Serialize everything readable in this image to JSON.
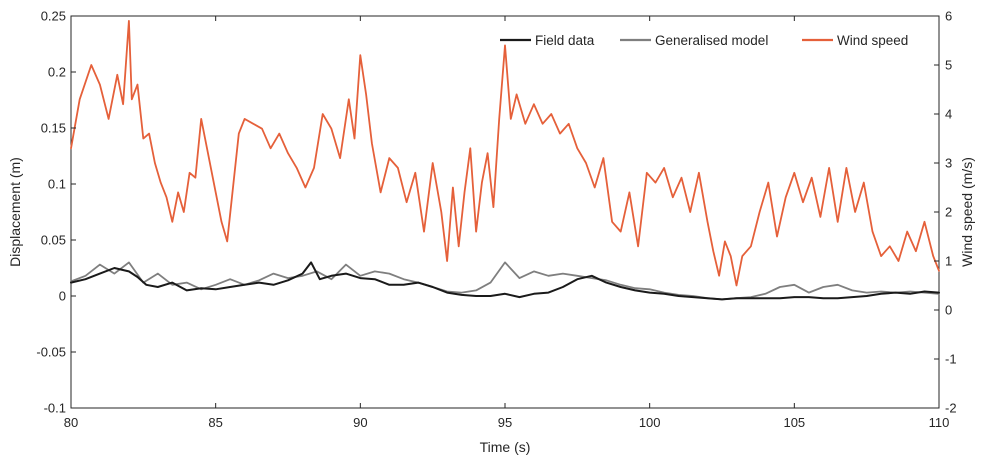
{
  "chart_data": {
    "type": "line",
    "xlabel": "Time (s)",
    "ylabel_left": "Displacement (m)",
    "ylabel_right": "Wind speed (m/s)",
    "xlim": [
      80,
      110
    ],
    "ylim_left": [
      -0.1,
      0.25
    ],
    "ylim_right": [
      -2,
      6
    ],
    "x_ticks": [
      "80",
      "85",
      "90",
      "95",
      "100",
      "105",
      "110"
    ],
    "y_left_ticks": [
      "-0.1",
      "-0.05",
      "0",
      "0.05",
      "0.1",
      "0.15",
      "0.2",
      "0.25"
    ],
    "y_right_ticks": [
      "-2",
      "-1",
      "0",
      "1",
      "2",
      "3",
      "4",
      "5",
      "6"
    ],
    "grid": false,
    "legend_position": "top-right",
    "legend": [
      "Field data",
      "Generalised model",
      "Wind speed"
    ],
    "colors": {
      "field": "#1a1a1a",
      "model": "#7f7f7f",
      "wind": "#e5603a",
      "axis": "#262626"
    },
    "series": [
      {
        "name": "Field data",
        "axis": "left",
        "x": [
          80,
          80.5,
          81,
          81.5,
          82,
          82.3,
          82.6,
          83,
          83.5,
          84,
          84.5,
          85,
          85.5,
          86,
          86.5,
          87,
          87.5,
          88,
          88.3,
          88.6,
          89,
          89.5,
          90,
          90.5,
          91,
          91.5,
          92,
          92.5,
          93,
          93.5,
          94,
          94.5,
          95,
          95.5,
          96,
          96.5,
          97,
          97.5,
          98,
          98.5,
          99,
          99.5,
          100,
          100.5,
          101,
          101.5,
          102,
          102.5,
          103,
          103.5,
          104,
          104.5,
          105,
          105.5,
          106,
          106.5,
          107,
          107.5,
          108,
          108.5,
          109,
          109.5,
          110
        ],
        "values": [
          0.012,
          0.015,
          0.02,
          0.025,
          0.022,
          0.017,
          0.01,
          0.008,
          0.012,
          0.005,
          0.007,
          0.006,
          0.008,
          0.01,
          0.012,
          0.01,
          0.014,
          0.02,
          0.03,
          0.015,
          0.018,
          0.02,
          0.016,
          0.015,
          0.01,
          0.01,
          0.012,
          0.008,
          0.003,
          0.001,
          0.0,
          0.0,
          0.002,
          -0.001,
          0.002,
          0.003,
          0.008,
          0.015,
          0.018,
          0.012,
          0.008,
          0.005,
          0.003,
          0.002,
          0.0,
          -0.001,
          -0.002,
          -0.003,
          -0.002,
          -0.002,
          -0.002,
          -0.002,
          -0.001,
          -0.001,
          -0.002,
          -0.002,
          -0.001,
          0.0,
          0.002,
          0.003,
          0.002,
          0.004,
          0.003
        ]
      },
      {
        "name": "Generalised model",
        "axis": "left",
        "x": [
          80,
          80.5,
          81,
          81.5,
          82,
          82.5,
          83,
          83.5,
          84,
          84.5,
          85,
          85.5,
          86,
          86.5,
          87,
          87.5,
          88,
          88.5,
          89,
          89.5,
          90,
          90.5,
          91,
          91.5,
          92,
          92.5,
          93,
          93.5,
          94,
          94.5,
          95,
          95.5,
          96,
          96.5,
          97,
          97.5,
          98,
          98.5,
          99,
          99.5,
          100,
          100.5,
          101,
          101.5,
          102,
          102.5,
          103,
          103.5,
          104,
          104.5,
          105,
          105.5,
          106,
          106.5,
          107,
          107.5,
          108,
          108.5,
          109,
          109.5,
          110
        ],
        "values": [
          0.013,
          0.018,
          0.028,
          0.02,
          0.03,
          0.012,
          0.02,
          0.01,
          0.012,
          0.006,
          0.01,
          0.015,
          0.01,
          0.014,
          0.02,
          0.016,
          0.018,
          0.022,
          0.015,
          0.028,
          0.018,
          0.022,
          0.02,
          0.015,
          0.012,
          0.008,
          0.004,
          0.003,
          0.005,
          0.012,
          0.03,
          0.016,
          0.022,
          0.018,
          0.02,
          0.018,
          0.016,
          0.014,
          0.01,
          0.007,
          0.006,
          0.003,
          0.001,
          0.0,
          -0.002,
          -0.003,
          -0.002,
          -0.001,
          0.002,
          0.008,
          0.01,
          0.003,
          0.008,
          0.01,
          0.005,
          0.003,
          0.004,
          0.003,
          0.004,
          0.003,
          0.002
        ]
      },
      {
        "name": "Wind speed",
        "axis": "right",
        "x": [
          80,
          80.3,
          80.7,
          81,
          81.3,
          81.6,
          81.8,
          82,
          82.1,
          82.3,
          82.5,
          82.7,
          82.9,
          83.1,
          83.3,
          83.5,
          83.7,
          83.9,
          84.1,
          84.3,
          84.5,
          84.7,
          85,
          85.2,
          85.4,
          85.6,
          85.8,
          86,
          86.3,
          86.6,
          86.9,
          87.2,
          87.5,
          87.8,
          88.1,
          88.4,
          88.7,
          89,
          89.3,
          89.6,
          89.8,
          90,
          90.2,
          90.4,
          90.7,
          91,
          91.3,
          91.6,
          91.9,
          92.2,
          92.5,
          92.8,
          93,
          93.2,
          93.4,
          93.6,
          93.8,
          94,
          94.2,
          94.4,
          94.6,
          94.8,
          95,
          95.2,
          95.4,
          95.7,
          96,
          96.3,
          96.6,
          96.9,
          97.2,
          97.5,
          97.8,
          98.1,
          98.4,
          98.7,
          99,
          99.3,
          99.6,
          99.9,
          100.2,
          100.5,
          100.8,
          101.1,
          101.4,
          101.7,
          102,
          102.2,
          102.4,
          102.6,
          102.8,
          103,
          103.2,
          103.5,
          103.8,
          104.1,
          104.4,
          104.7,
          105,
          105.3,
          105.6,
          105.9,
          106.2,
          106.5,
          106.8,
          107.1,
          107.4,
          107.7,
          108,
          108.3,
          108.6,
          108.9,
          109.2,
          109.5,
          109.8,
          110
        ],
        "values": [
          3.3,
          4.3,
          5.0,
          4.6,
          3.9,
          4.8,
          4.2,
          5.9,
          4.3,
          4.6,
          3.5,
          3.6,
          3.0,
          2.6,
          2.3,
          1.8,
          2.4,
          2.0,
          2.8,
          2.7,
          3.9,
          3.3,
          2.4,
          1.8,
          1.4,
          2.5,
          3.6,
          3.9,
          3.8,
          3.7,
          3.3,
          3.6,
          3.2,
          2.9,
          2.5,
          2.9,
          4.0,
          3.7,
          3.1,
          4.3,
          3.5,
          5.2,
          4.4,
          3.4,
          2.4,
          3.1,
          2.9,
          2.2,
          2.8,
          1.6,
          3.0,
          2.0,
          1.0,
          2.5,
          1.3,
          2.4,
          3.3,
          1.6,
          2.6,
          3.2,
          2.1,
          3.9,
          5.4,
          3.9,
          4.4,
          3.8,
          4.2,
          3.8,
          4.0,
          3.6,
          3.8,
          3.3,
          3.0,
          2.5,
          3.1,
          1.8,
          1.6,
          2.4,
          1.3,
          2.8,
          2.6,
          2.9,
          2.3,
          2.7,
          2.0,
          2.8,
          1.8,
          1.2,
          0.7,
          1.4,
          1.1,
          0.5,
          1.1,
          1.3,
          2.0,
          2.6,
          1.5,
          2.3,
          2.8,
          2.2,
          2.7,
          1.9,
          2.9,
          1.8,
          2.9,
          2.0,
          2.6,
          1.6,
          1.1,
          1.3,
          1.0,
          1.6,
          1.2,
          1.8,
          1.1,
          0.8
        ]
      }
    ]
  }
}
